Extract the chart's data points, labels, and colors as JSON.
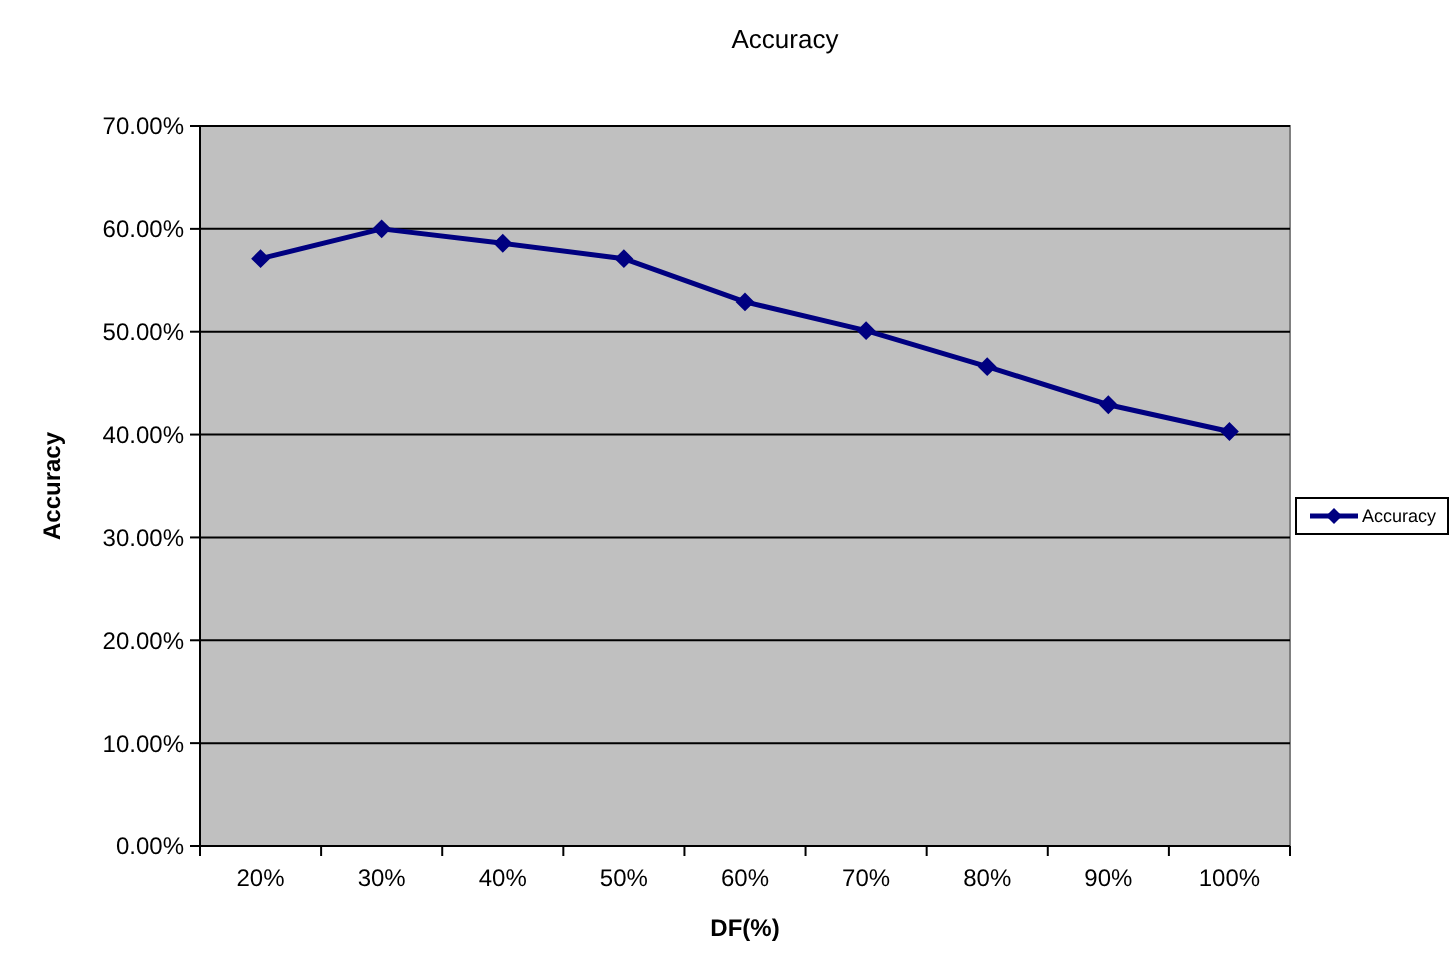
{
  "chart_data": {
    "type": "line",
    "title": "Accuracy",
    "xlabel": "DF(%)",
    "ylabel": "Accuracy",
    "categories": [
      "20%",
      "30%",
      "40%",
      "50%",
      "60%",
      "70%",
      "80%",
      "90%",
      "100%"
    ],
    "series": [
      {
        "name": "Accuracy",
        "color": "#000080",
        "values": [
          57.1,
          60.0,
          58.6,
          57.1,
          52.9,
          50.1,
          46.6,
          42.9,
          40.3
        ]
      }
    ],
    "ylim": [
      0,
      70
    ],
    "yticks": [
      {
        "value": 0,
        "label": "0.00%"
      },
      {
        "value": 10,
        "label": "10.00%"
      },
      {
        "value": 20,
        "label": "20.00%"
      },
      {
        "value": 30,
        "label": "30.00%"
      },
      {
        "value": 40,
        "label": "40.00%"
      },
      {
        "value": 50,
        "label": "50.00%"
      },
      {
        "value": 60,
        "label": "60.00%"
      },
      {
        "value": 70,
        "label": "70.00%"
      }
    ],
    "grid": "y",
    "legend": "right",
    "marker": "diamond",
    "line_style": "solid"
  }
}
